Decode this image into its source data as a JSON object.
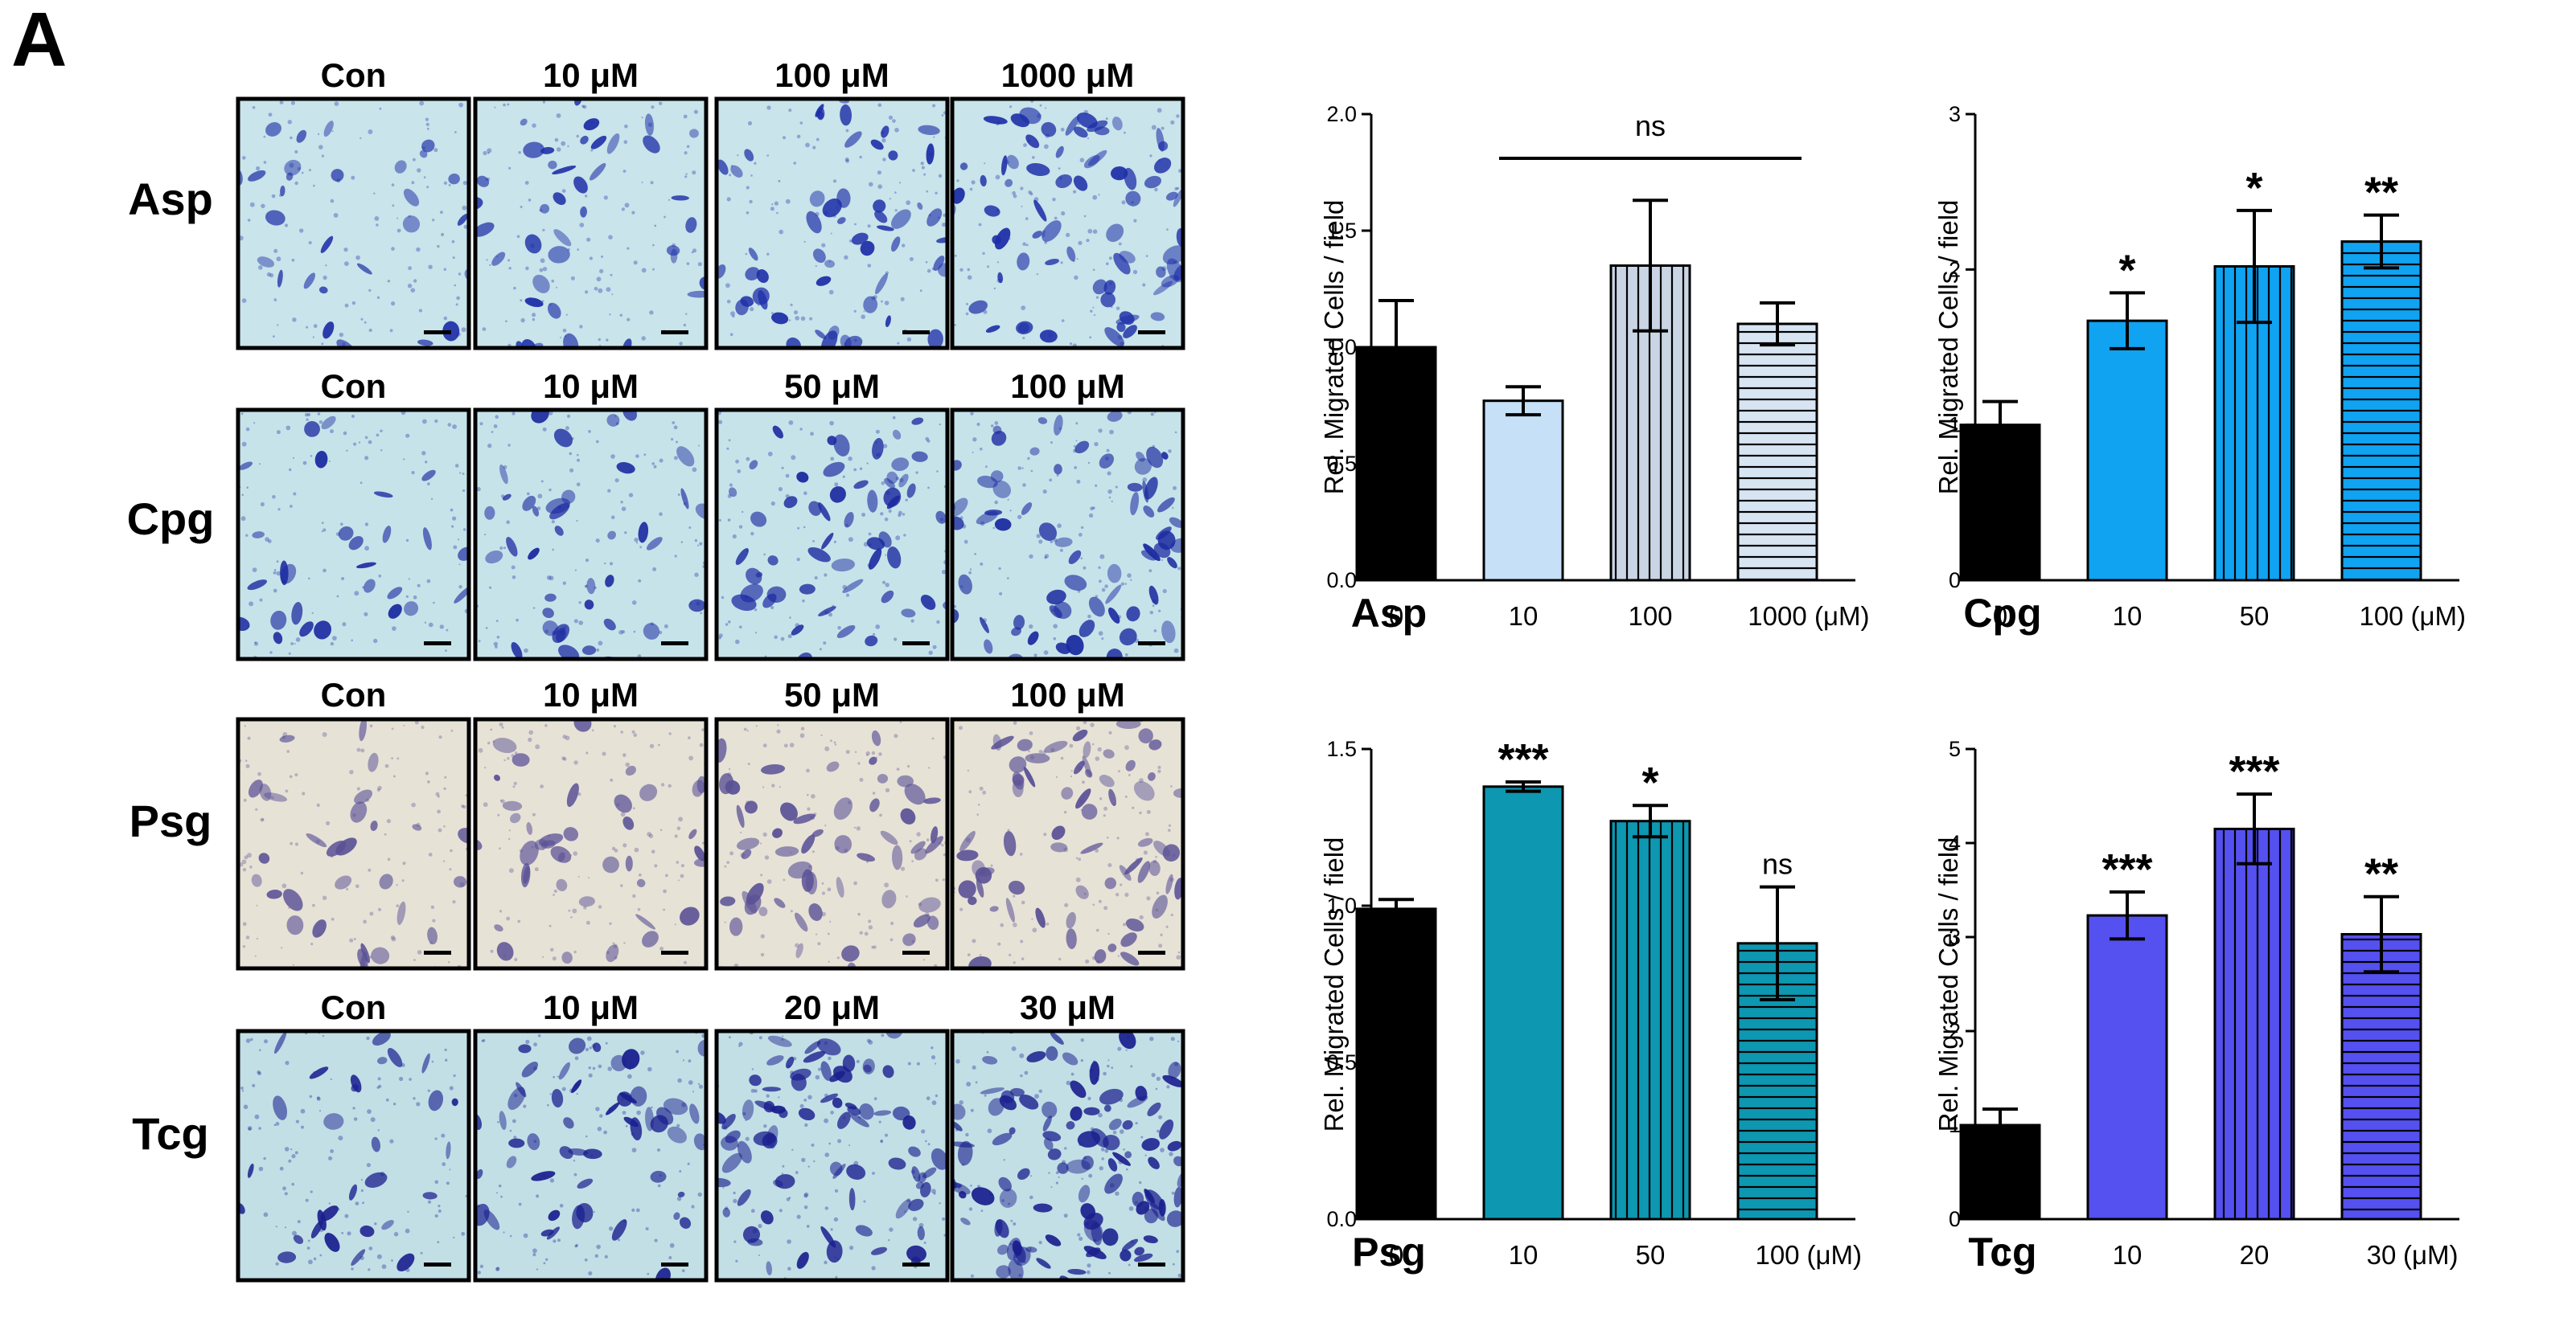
{
  "panel_label": "A",
  "micrographs": {
    "rows": [
      {
        "compound": "Asp",
        "columns": [
          "Con",
          "10 μM",
          "100 μM",
          "1000 μM"
        ],
        "stain": "#1e2fa8",
        "background": "#c9e4ea"
      },
      {
        "compound": "Cpg",
        "columns": [
          "Con",
          "10 μM",
          "50 μM",
          "100 μM"
        ],
        "stain": "#1b2aa0",
        "background": "#c7e3ea"
      },
      {
        "compound": "Psg",
        "columns": [
          "Con",
          "10 μM",
          "50 μM",
          "100 μM"
        ],
        "stain": "#5a5196",
        "background": "#e7e2d6"
      },
      {
        "compound": "Tcg",
        "columns": [
          "Con",
          "10 μM",
          "20 μM",
          "30 μM"
        ],
        "stain": "#1a1f8e",
        "background": "#c2dfe6"
      }
    ]
  },
  "chart_data": [
    {
      "type": "bar",
      "compound": "Asp",
      "categories": [
        "0",
        "10",
        "100",
        "1000"
      ],
      "unit_label": "(μM)",
      "values": [
        1.0,
        0.77,
        1.35,
        1.1
      ],
      "errors": [
        0.2,
        0.06,
        0.28,
        0.09
      ],
      "ylabel": "Rel. Migrated Cells / field",
      "ylim": [
        0,
        2.0
      ],
      "yticks": [
        "0.0",
        "0.5",
        "1.0",
        "1.5",
        "2.0"
      ],
      "bar_colors": [
        "#000000",
        "#c6e0f7",
        "#c9d5e4",
        "#d7e4f2"
      ],
      "hatch": [
        "none",
        "none",
        "vertical",
        "horizontal"
      ],
      "significance": [
        "",
        "",
        "",
        ""
      ],
      "bracket": {
        "from": 1,
        "to": 3,
        "label": "ns"
      }
    },
    {
      "type": "bar",
      "compound": "Cpg",
      "categories": [
        "0",
        "10",
        "50",
        "100"
      ],
      "unit_label": "(μM)",
      "values": [
        1.0,
        1.67,
        2.02,
        2.18
      ],
      "errors": [
        0.15,
        0.18,
        0.36,
        0.17
      ],
      "ylabel": "Rel. Migrated Cells / field",
      "ylim": [
        0,
        3
      ],
      "yticks": [
        "0",
        "1",
        "2",
        "3"
      ],
      "bar_colors": [
        "#000000",
        "#0fa3f2",
        "#0fa3f2",
        "#0fa3f2"
      ],
      "hatch": [
        "none",
        "none",
        "vertical",
        "horizontal"
      ],
      "significance": [
        "",
        "*",
        "*",
        "**"
      ]
    },
    {
      "type": "bar",
      "compound": "Psg",
      "categories": [
        "0",
        "10",
        "50",
        "100"
      ],
      "unit_label": "(μM)",
      "values": [
        0.99,
        1.38,
        1.27,
        0.88
      ],
      "errors": [
        0.03,
        0.015,
        0.05,
        0.18
      ],
      "ylabel": "Rel. Migrated Cells / field",
      "ylim": [
        0,
        1.5
      ],
      "yticks": [
        "0.0",
        "0.5",
        "1.0",
        "1.5"
      ],
      "bar_colors": [
        "#000000",
        "#0d97b1",
        "#0d97b1",
        "#0d97b1"
      ],
      "hatch": [
        "none",
        "none",
        "vertical",
        "horizontal"
      ],
      "significance": [
        "",
        "***",
        "*",
        "ns"
      ]
    },
    {
      "type": "bar",
      "compound": "Tcg",
      "categories": [
        "0",
        "10",
        "20",
        "30"
      ],
      "unit_label": "(μM)",
      "values": [
        1.0,
        3.23,
        4.15,
        3.03
      ],
      "errors": [
        0.17,
        0.25,
        0.37,
        0.4
      ],
      "ylabel": "Rel. Migrated Cells / field",
      "ylim": [
        0,
        5
      ],
      "yticks": [
        "0",
        "1",
        "2",
        "3",
        "4",
        "5"
      ],
      "bar_colors": [
        "#000000",
        "#5550f0",
        "#5550f0",
        "#5550f0"
      ],
      "hatch": [
        "none",
        "none",
        "vertical",
        "horizontal"
      ],
      "significance": [
        "",
        "***",
        "***",
        "**"
      ]
    }
  ]
}
